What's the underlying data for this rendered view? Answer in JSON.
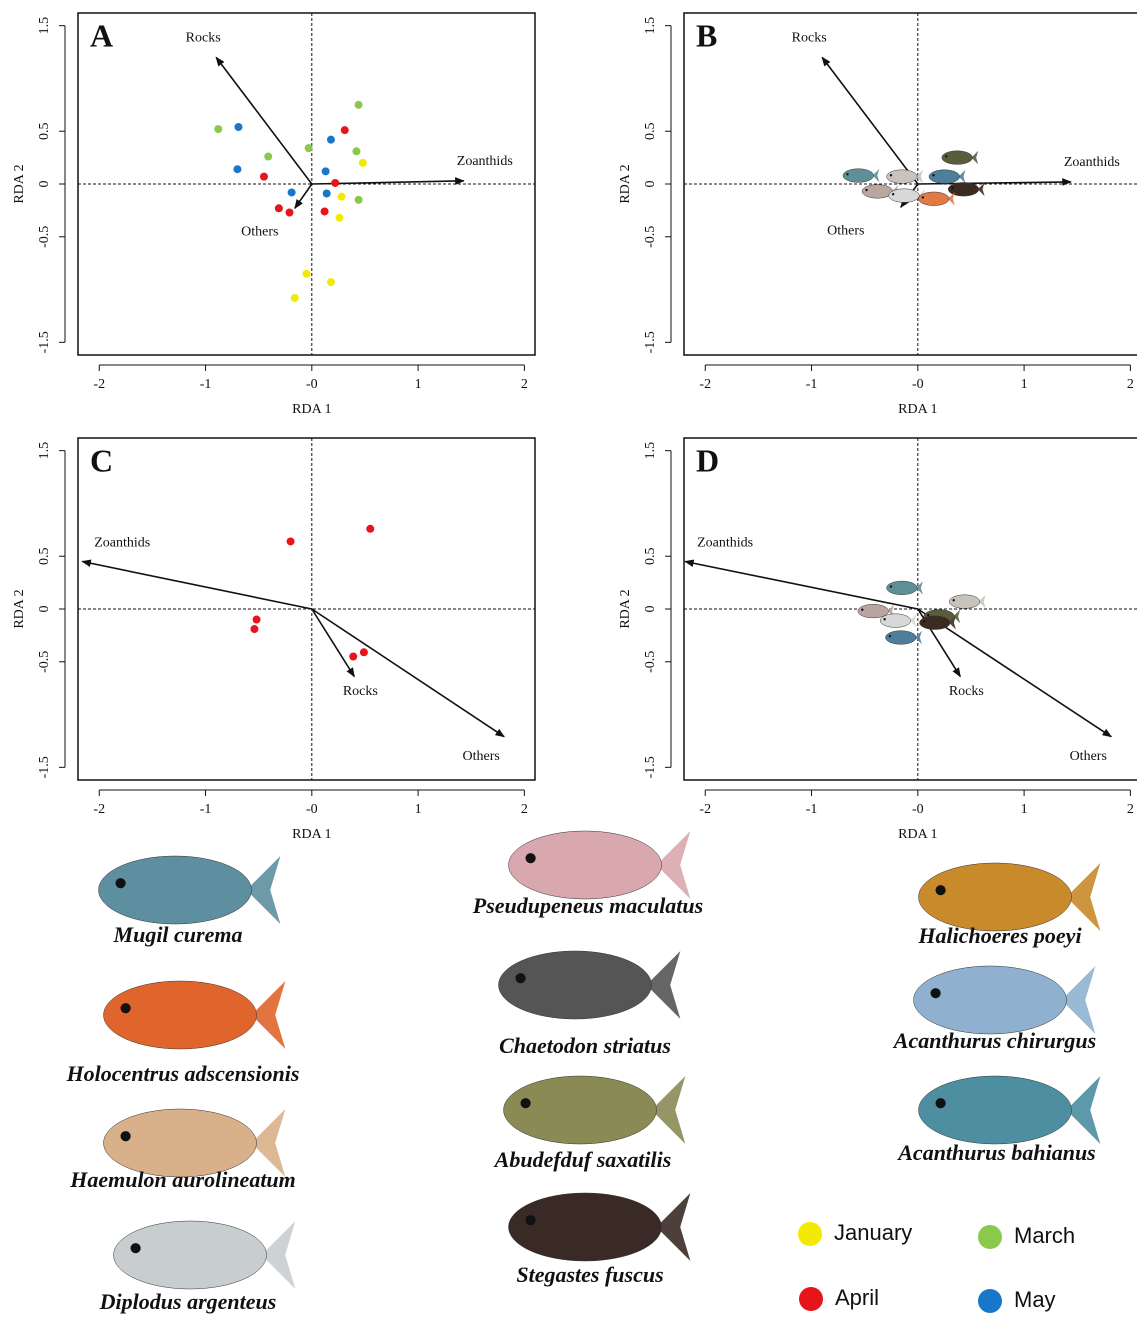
{
  "chart_data": [
    {
      "type": "scatter",
      "title": "A",
      "x_label": "RDA 1",
      "y_label": "RDA 2",
      "xlim": [
        -2.2,
        2.1
      ],
      "ylim": [
        -1.62,
        1.62
      ],
      "xticks": [
        -2,
        -1,
        {
          "value": 0,
          "label": "-0"
        },
        1,
        2
      ],
      "yticks": [
        -1.5,
        -0.5,
        0,
        0.5,
        1.5
      ],
      "arrows": [
        {
          "label": "Rocks",
          "x": -0.9,
          "y": 1.2
        },
        {
          "label": "Zoanthids",
          "x": 1.43,
          "y": 0.03
        },
        {
          "label": "Others",
          "x": -0.16,
          "y": -0.23
        }
      ],
      "series": [
        {
          "name": "January",
          "color": "#f2ea00",
          "x": [
            0.48,
            0.28,
            0.26,
            -0.05,
            0.18,
            -0.16
          ],
          "y": [
            0.2,
            -0.12,
            -0.32,
            -0.85,
            -0.93,
            -1.08
          ]
        },
        {
          "name": "March",
          "color": "#8cc84b",
          "x": [
            -0.88,
            -0.41,
            -0.03,
            0.44,
            0.42,
            0.44
          ],
          "y": [
            0.52,
            0.26,
            0.34,
            0.75,
            0.31,
            -0.15
          ]
        },
        {
          "name": "April",
          "color": "#e8141c",
          "x": [
            -0.45,
            -0.31,
            -0.21,
            0.31,
            0.22,
            0.12
          ],
          "y": [
            0.07,
            -0.23,
            -0.27,
            0.51,
            0.01,
            -0.26
          ]
        },
        {
          "name": "May",
          "color": "#1877c9",
          "x": [
            -0.69,
            -0.7,
            -0.19,
            0.18,
            0.13,
            0.14
          ],
          "y": [
            0.54,
            0.14,
            -0.08,
            0.42,
            0.12,
            -0.09
          ]
        }
      ]
    },
    {
      "type": "scatter",
      "title": "B",
      "x_label": "RDA 1",
      "y_label": "RDA 2",
      "xlim": [
        -2.2,
        2.1
      ],
      "ylim": [
        -1.62,
        1.62
      ],
      "xticks": [
        -2,
        -1,
        {
          "value": 0,
          "label": "-0"
        },
        1,
        2
      ],
      "yticks": [
        -1.5,
        -0.5,
        0,
        0.5,
        1.5
      ],
      "arrows": [
        {
          "label": "Rocks",
          "x": -0.9,
          "y": 1.2
        },
        {
          "label": "Zoanthids",
          "x": 1.44,
          "y": 0.02
        },
        {
          "label": "Others",
          "x": -0.16,
          "y": -0.22
        }
      ],
      "series": [
        {
          "marker": "fish",
          "x": [
            -0.56,
            -0.15,
            -0.38,
            -0.13,
            0.37,
            0.25,
            0.43,
            0.15
          ],
          "y": [
            0.08,
            0.07,
            -0.07,
            -0.11,
            0.25,
            0.07,
            -0.05,
            -0.14
          ]
        }
      ]
    },
    {
      "type": "scatter",
      "title": "C",
      "x_label": "RDA 1",
      "y_label": "RDA 2",
      "xlim": [
        -2.2,
        2.1
      ],
      "ylim": [
        -1.62,
        1.62
      ],
      "xticks": [
        -2,
        -1,
        {
          "value": 0,
          "label": "-0"
        },
        1,
        2
      ],
      "yticks": [
        -1.5,
        -0.5,
        0,
        0.5,
        1.5
      ],
      "arrows": [
        {
          "label": "Zoanthids",
          "x": -2.16,
          "y": 0.45
        },
        {
          "label": "Rocks",
          "x": 0.4,
          "y": -0.64
        },
        {
          "label": "Others",
          "x": 1.81,
          "y": -1.21
        }
      ],
      "series": [
        {
          "color": "#e8141c",
          "x": [
            -0.2,
            0.55,
            -0.52,
            -0.54,
            0.39,
            0.49
          ],
          "y": [
            0.64,
            0.76,
            -0.1,
            -0.19,
            -0.45,
            -0.41
          ]
        }
      ]
    },
    {
      "type": "scatter",
      "title": "D",
      "x_label": "RDA 1",
      "y_label": "RDA 2",
      "xlim": [
        -2.2,
        2.1
      ],
      "ylim": [
        -1.62,
        1.62
      ],
      "xticks": [
        -2,
        -1,
        {
          "value": 0,
          "label": "-0"
        },
        1,
        2
      ],
      "yticks": [
        -1.5,
        -0.5,
        0,
        0.5,
        1.5
      ],
      "arrows": [
        {
          "label": "Zoanthids",
          "x": -2.19,
          "y": 0.45
        },
        {
          "label": "Rocks",
          "x": 0.4,
          "y": -0.64
        },
        {
          "label": "Others",
          "x": 1.82,
          "y": -1.21
        }
      ],
      "series": [
        {
          "marker": "fish",
          "x": [
            -0.15,
            0.44,
            -0.42,
            -0.21,
            0.2,
            -0.16,
            0.16
          ],
          "y": [
            0.2,
            0.07,
            -0.02,
            -0.11,
            -0.07,
            -0.27,
            -0.13
          ]
        }
      ]
    }
  ],
  "species": [
    "Mugil curema",
    "Holocentrus adscensionis",
    "Haemulon aurolineatum",
    "Diplodus argenteus",
    "Pseudupeneus maculatus",
    "Chaetodon striatus",
    "Abudefduf saxatilis",
    "Stegastes fuscus",
    "Halichoeres poeyi",
    "Acanthurus chirurgus",
    "Acanthurus bahianus"
  ]
}
